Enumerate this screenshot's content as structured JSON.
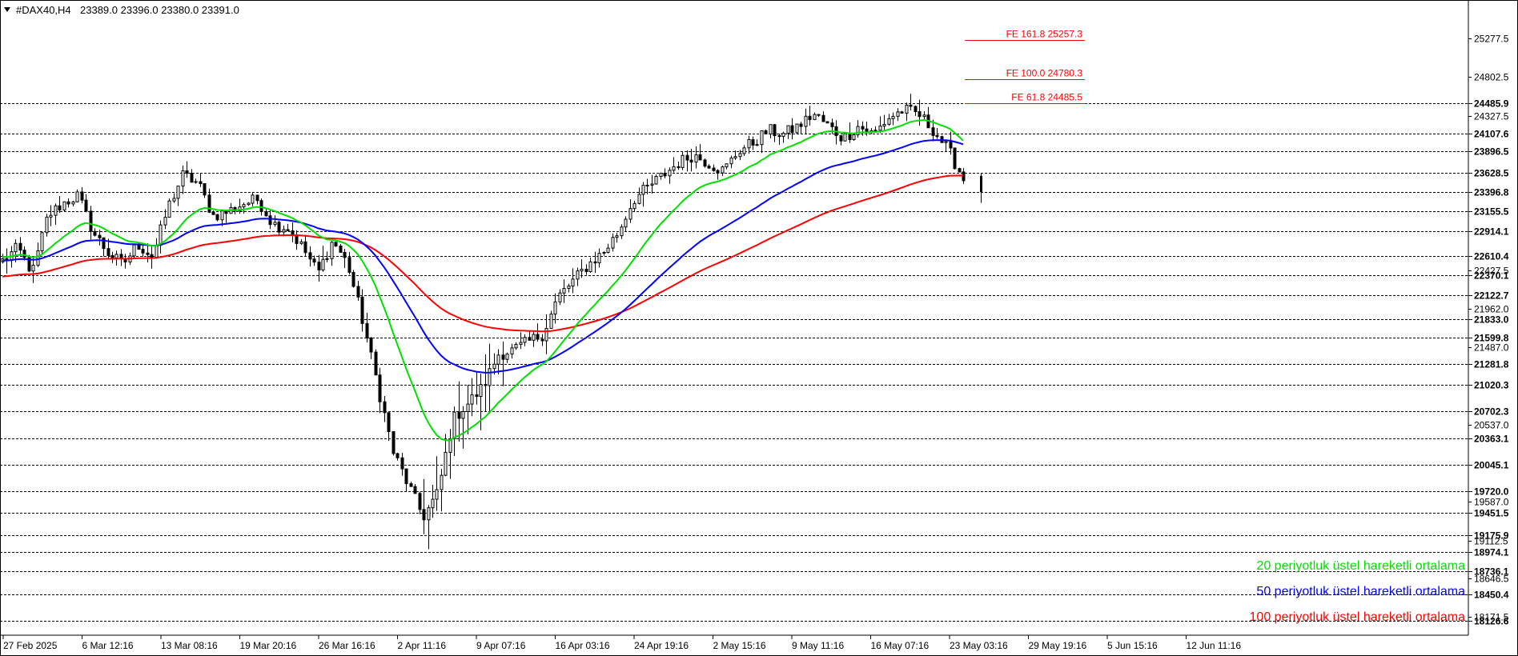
{
  "header": {
    "symbol": "#DAX40,H4",
    "ohlc": "23389.0 23396.0 23380.0 23391.0"
  },
  "colors": {
    "ema20": "#00e000",
    "ema50": "#0000ff",
    "ema100": "#ff0000",
    "fe": "#ff0000",
    "candle": "#000000",
    "grid": "#000000"
  },
  "chart_data": {
    "type": "candlestick",
    "y_range": [
      17950,
      25750
    ],
    "axis_ticks": [
      "25277.5",
      "24802.5",
      "24327.5",
      "21962.0",
      "21487.0",
      "20537.0",
      "19587.0",
      "19112.5",
      "18646.5",
      "18171.5",
      "22427.5"
    ],
    "levels": [
      "24485.9",
      "24107.6",
      "23896.5",
      "23628.5",
      "23396.8",
      "23155.5",
      "22914.1",
      "22610.4",
      "22370.1",
      "22122.7",
      "21833.0",
      "21599.8",
      "21281.8",
      "21020.3",
      "20702.3",
      "20363.1",
      "20045.1",
      "19720.0",
      "19451.5",
      "19175.9",
      "18974.1",
      "18736.1",
      "18450.4",
      "18126.6"
    ],
    "fib_extensions": [
      {
        "label": "FE 161.8 25257.3",
        "value": 25257.3
      },
      {
        "label": "FE 100.0 24780.3",
        "value": 24780.3
      },
      {
        "label": "FE 61.8 24485.5",
        "value": 24485.5
      }
    ],
    "x_labels": [
      "27 Feb 2025",
      "6 Mar 12:16",
      "13 Mar 08:16",
      "19 Mar 20:16",
      "26 Mar 16:16",
      "2 Apr 11:16",
      "9 Apr 07:16",
      "16 Apr 03:16",
      "24 Apr 19:16",
      "2 May 15:16",
      "9 May 11:16",
      "16 May 07:16",
      "23 May 03:16",
      "29 May 19:16",
      "5 Jun 15:16",
      "12 Jun 11:16"
    ],
    "anchor_closes": [
      22550,
      22700,
      22400,
      23100,
      23250,
      23350,
      22900,
      22650,
      22500,
      22750,
      22600,
      23200,
      23600,
      23500,
      23100,
      23150,
      23250,
      23300,
      23000,
      22950,
      22700,
      22400,
      22800,
      22500,
      21800,
      21000,
      20200,
      19800,
      19400,
      19700,
      20600,
      20800,
      21000,
      21400,
      21450,
      21550,
      21650,
      22100,
      22300,
      22500,
      22650,
      22900,
      23300,
      23450,
      23600,
      23750,
      23850,
      23750,
      23650,
      23900,
      24000,
      24150,
      24100,
      24200,
      24350,
      24200,
      24050,
      24200,
      24100,
      24300,
      24400,
      24350,
      24150,
      23900,
      23550
    ],
    "n_candles": 220,
    "series": [
      {
        "name": "20 periyotluk üstel hareketli ortalama",
        "period": 20
      },
      {
        "name": "50 periyotluk üstel hareketli ortalama",
        "period": 50
      },
      {
        "name": "100 periyotluk üstel hareketli ortalama",
        "period": 100
      }
    ]
  },
  "legend": {
    "ema20": "20 periyotluk üstel hareketli ortalama",
    "ema50": "50 periyotluk üstel hareketli ortalama",
    "ema100": "100 periyotluk üstel hareketli ortalama"
  }
}
